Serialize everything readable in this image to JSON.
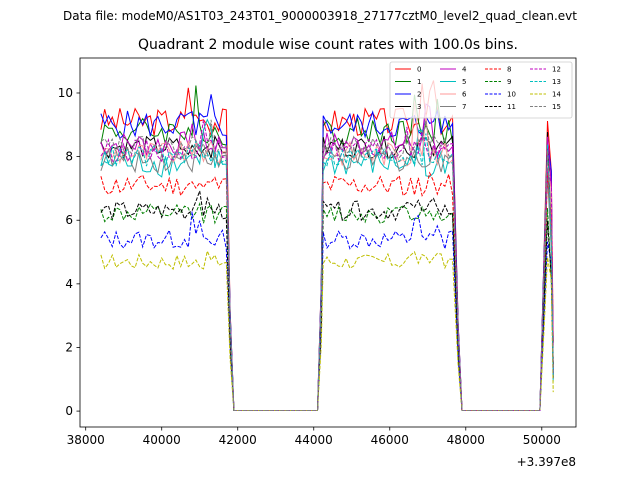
{
  "chart_data": {
    "type": "line",
    "suptitle": "Data file: modeM0/AS1T03_243T01_9000003918_27177cztM0_level2_quad_clean.evt",
    "title": "Quadrant 2 module wise count rates with 100.0s bins.",
    "xlabel": "",
    "ylabel": "",
    "x_offset_label": "+3.397e8",
    "xlim": [
      37850,
      50900
    ],
    "ylim": [
      -0.5,
      11.1
    ],
    "xticks": [
      38000,
      40000,
      42000,
      44000,
      46000,
      48000,
      50000
    ],
    "xtick_labels": [
      "38000",
      "40000",
      "42000",
      "44000",
      "46000",
      "48000",
      "50000"
    ],
    "yticks": [
      0,
      2,
      4,
      6,
      8,
      10
    ],
    "ytick_labels": [
      "0",
      "2",
      "4",
      "6",
      "8",
      "10"
    ],
    "legend_position": "top-right",
    "segments": [
      {
        "start": 38400,
        "end": 41700,
        "drop_end": 41900
      },
      {
        "rise_start": 44100,
        "start": 44250,
        "end": 47700,
        "drop_end": 47900
      },
      {
        "rise_start": 49950,
        "start": 50150,
        "end": 50250,
        "drop_end": 50300
      }
    ],
    "series": [
      {
        "name": "0",
        "color": "#ff0000",
        "dash": "solid",
        "level": 9.1,
        "amp": 0.45,
        "peak": 10.6
      },
      {
        "name": "1",
        "color": "#008000",
        "dash": "solid",
        "level": 8.8,
        "amp": 0.45,
        "peak": 10.1
      },
      {
        "name": "2",
        "color": "#0000ff",
        "dash": "solid",
        "level": 9.0,
        "amp": 0.45,
        "peak": 10.0
      },
      {
        "name": "3",
        "color": "#000000",
        "dash": "solid",
        "level": 8.3,
        "amp": 0.35,
        "peak": 9.4
      },
      {
        "name": "4",
        "color": "#bf00bf",
        "dash": "solid",
        "level": 8.4,
        "amp": 0.4,
        "peak": 9.5
      },
      {
        "name": "5",
        "color": "#00bfbf",
        "dash": "solid",
        "level": 7.8,
        "amp": 0.45,
        "peak": 9.0
      },
      {
        "name": "6",
        "color": "#ff9a9a",
        "dash": "solid",
        "level": 8.1,
        "amp": 0.4,
        "peak": 10.0
      },
      {
        "name": "7",
        "color": "#808080",
        "dash": "solid",
        "level": 7.9,
        "amp": 0.4,
        "peak": 8.8
      },
      {
        "name": "8",
        "color": "#ff0000",
        "dash": "dashed",
        "level": 7.1,
        "amp": 0.35,
        "peak": 7.6
      },
      {
        "name": "9",
        "color": "#008000",
        "dash": "dashed",
        "level": 6.2,
        "amp": 0.3,
        "peak": 6.8
      },
      {
        "name": "10",
        "color": "#0000ff",
        "dash": "dashed",
        "level": 5.4,
        "amp": 0.3,
        "peak": 6.2
      },
      {
        "name": "11",
        "color": "#000000",
        "dash": "dashed",
        "level": 6.3,
        "amp": 0.3,
        "peak": 7.0
      },
      {
        "name": "12",
        "color": "#bf00bf",
        "dash": "dashed",
        "level": 8.2,
        "amp": 0.35,
        "peak": 9.1
      },
      {
        "name": "13",
        "color": "#00bfbf",
        "dash": "dashed",
        "level": 8.0,
        "amp": 0.35,
        "peak": 8.7
      },
      {
        "name": "14",
        "color": "#bfbf00",
        "dash": "dashed",
        "level": 4.7,
        "amp": 0.25,
        "peak": 5.2
      },
      {
        "name": "15",
        "color": "#808080",
        "dash": "dashed",
        "level": 8.3,
        "amp": 0.35,
        "peak": 9.0
      }
    ]
  }
}
